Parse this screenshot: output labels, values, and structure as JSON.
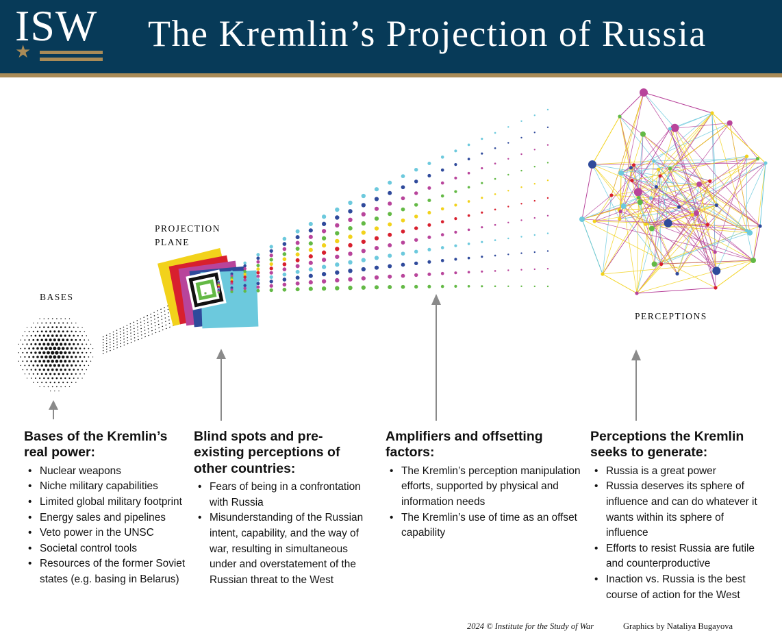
{
  "header": {
    "logo_text": "ISW",
    "title": "The Kremlin’s Projection of Russia"
  },
  "diagram_labels": {
    "bases": "BASES",
    "projection_plane_line1": "PROJECTION",
    "projection_plane_line2": "PLANE",
    "perceptions": "PERCEPTIONS"
  },
  "columns": [
    {
      "heading": "Bases of the Kremlin’s real power:",
      "items": [
        "Nuclear weapons",
        "Niche military capabilities",
        "Limited global military footprint",
        "Energy sales and pipelines",
        "Veto power in the UNSC",
        "Societal control tools",
        "Resources of the former Soviet states (e.g. basing in Belarus)"
      ]
    },
    {
      "heading": "Blind spots and pre-existing perceptions of other countries:",
      "items": [
        "Fears of being in a confrontation with Russia",
        "Misunderstanding of the Russian intent, capability, and the way of war, resulting in simultaneous under and overstatement of the Russian threat to the West"
      ]
    },
    {
      "heading": "Amplifiers and offsetting factors:",
      "items": [
        "The Kremlin’s perception manipulation efforts, supported by physical and information needs",
        "The Kremlin’s use of time as an offset capability"
      ]
    },
    {
      "heading": "Perceptions the Kremlin seeks to generate:",
      "items": [
        "Russia is a great power",
        "Russia deserves its sphere of influence and can do whatever it wants within its sphere of influence",
        "Efforts to resist Russia are futile and counterproductive",
        "Inaction vs. Russia is the best course of action for the West"
      ]
    }
  ],
  "footer": {
    "copyright": "2024 © Institute for the Study of War",
    "credit": "Graphics by Nataliya Bugayova"
  },
  "colors": {
    "header_bg": "#073a58",
    "gold": "#a98b57",
    "arrow": "#8a8a8a",
    "yellow": "#f2d21b",
    "red": "#d8202e",
    "magenta": "#b8449b",
    "navy": "#2f4a9b",
    "cyan": "#6cc9dd",
    "green": "#63b945"
  },
  "icons": [
    "star-icon",
    "arrow-up-icon"
  ]
}
